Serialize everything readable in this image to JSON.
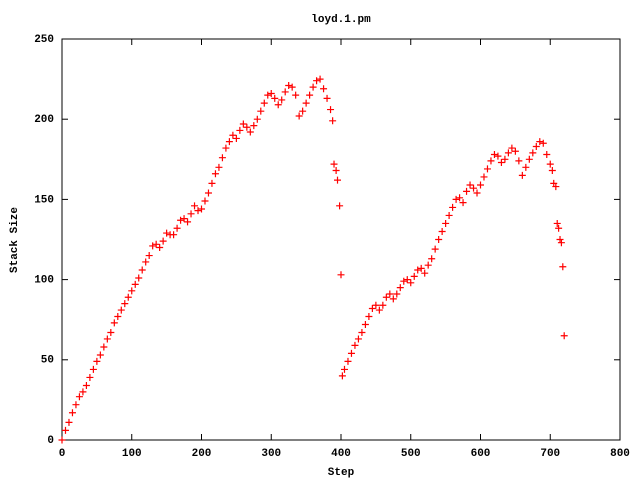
{
  "chart_data": {
    "type": "scatter",
    "title": "loyd.1.pm",
    "x_label": "Step",
    "y_label": "Stack Size",
    "color": "#ff0000",
    "marker": "+",
    "xlim": [
      0,
      800
    ],
    "xticks": [
      0,
      100,
      200,
      300,
      400,
      500,
      600,
      700,
      800
    ],
    "ylim": [
      0,
      250
    ],
    "yticks": [
      0,
      50,
      100,
      150,
      200,
      250
    ],
    "x": [
      0,
      5,
      10,
      15,
      20,
      25,
      30,
      35,
      40,
      45,
      50,
      55,
      60,
      65,
      70,
      75,
      80,
      85,
      90,
      95,
      100,
      105,
      110,
      115,
      120,
      125,
      130,
      135,
      140,
      145,
      150,
      155,
      160,
      165,
      170,
      175,
      180,
      185,
      190,
      195,
      200,
      205,
      210,
      215,
      220,
      225,
      230,
      235,
      240,
      245,
      250,
      255,
      260,
      265,
      270,
      275,
      280,
      285,
      290,
      295,
      300,
      305,
      310,
      315,
      320,
      325,
      330,
      335,
      340,
      345,
      350,
      355,
      360,
      365,
      370,
      375,
      380,
      385,
      388,
      390,
      393,
      395,
      398,
      400,
      402,
      405,
      410,
      415,
      420,
      425,
      430,
      435,
      440,
      445,
      450,
      455,
      460,
      465,
      470,
      475,
      480,
      485,
      490,
      495,
      500,
      505,
      510,
      515,
      520,
      525,
      530,
      535,
      540,
      545,
      550,
      555,
      560,
      565,
      570,
      575,
      580,
      585,
      590,
      595,
      600,
      605,
      610,
      615,
      620,
      625,
      630,
      635,
      640,
      645,
      650,
      655,
      660,
      665,
      670,
      675,
      680,
      685,
      690,
      695,
      700,
      703,
      705,
      708,
      710,
      712,
      714,
      716,
      718,
      720
    ],
    "values": [
      0,
      6,
      11,
      17,
      22,
      27,
      30,
      34,
      39,
      44,
      49,
      53,
      58,
      63,
      67,
      73,
      77,
      81,
      85,
      89,
      93,
      97,
      101,
      106,
      111,
      115,
      121,
      122,
      120,
      124,
      129,
      128,
      128,
      132,
      137,
      138,
      136,
      141,
      146,
      143,
      144,
      149,
      154,
      160,
      166,
      170,
      176,
      182,
      186,
      190,
      188,
      193,
      197,
      195,
      192,
      196,
      200,
      205,
      210,
      215,
      216,
      213,
      209,
      212,
      217,
      221,
      220,
      215,
      202,
      205,
      210,
      215,
      220,
      224,
      225,
      219,
      213,
      206,
      199,
      172,
      168,
      162,
      146,
      103,
      40,
      44,
      49,
      54,
      59,
      63,
      67,
      72,
      77,
      82,
      84,
      81,
      84,
      89,
      91,
      88,
      91,
      95,
      99,
      100,
      98,
      102,
      106,
      107,
      104,
      109,
      113,
      119,
      125,
      130,
      135,
      140,
      145,
      150,
      151,
      148,
      155,
      159,
      157,
      154,
      159,
      164,
      169,
      174,
      178,
      177,
      173,
      175,
      179,
      182,
      180,
      174,
      165,
      170,
      175,
      179,
      183,
      186,
      185,
      178,
      172,
      168,
      160,
      158,
      135,
      132,
      125,
      123,
      108,
      65
    ]
  }
}
